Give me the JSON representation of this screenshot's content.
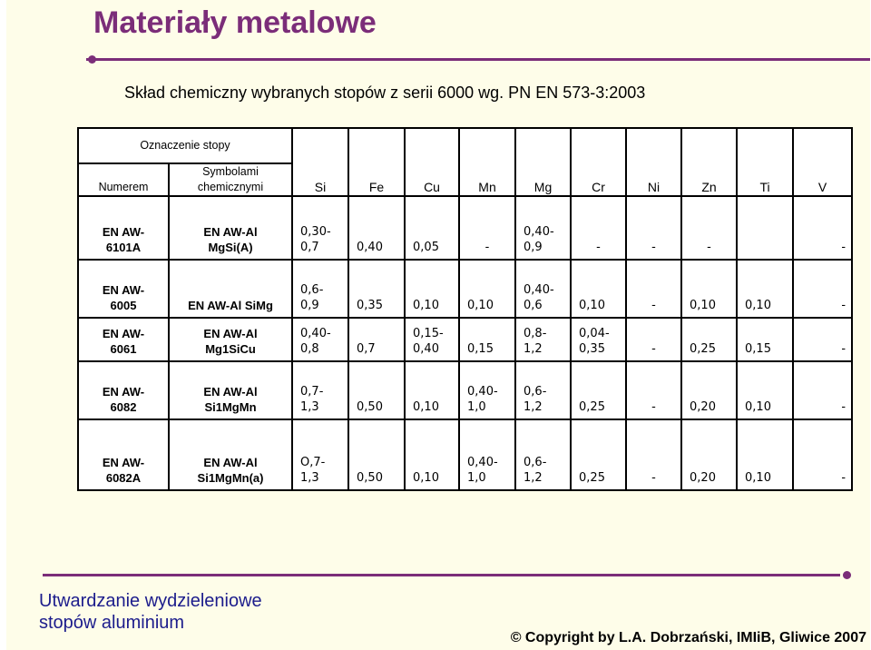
{
  "slide": {
    "title": "Materiały metalowe",
    "subtitle": "Skład chemiczny wybranych stopów z serii 6000 wg. PN EN 573-3:2003"
  },
  "table": {
    "group_header": "Oznaczenie stopy",
    "col_numerem": "Numerem",
    "col_symbolami_1": "Symbolami",
    "col_symbolami_2": "chemicznymi",
    "elements": [
      "Si",
      "Fe",
      "Cu",
      "Mn",
      "Mg",
      "Cr",
      "Ni",
      "Zn",
      "Ti",
      "V"
    ],
    "rows": [
      {
        "numer": [
          "EN AW-",
          "6101A"
        ],
        "symbol": [
          "EN AW-Al",
          "MgSi(A)"
        ],
        "values": [
          [
            "0,30-",
            "0,7"
          ],
          [
            "",
            "0,40"
          ],
          [
            "",
            "0,05"
          ],
          [
            "",
            "-"
          ],
          [
            "0,40-",
            "0,9"
          ],
          [
            "",
            "-"
          ],
          [
            "",
            "-"
          ],
          [
            "",
            "-"
          ],
          [
            "",
            ""
          ],
          [
            "",
            "-"
          ]
        ]
      },
      {
        "numer": [
          "EN AW-",
          "6005"
        ],
        "symbol": [
          "",
          "EN AW-Al SiMg"
        ],
        "values": [
          [
            "0,6-",
            "0,9"
          ],
          [
            "",
            "0,35"
          ],
          [
            "",
            "0,10"
          ],
          [
            "",
            "0,10"
          ],
          [
            "0,40-",
            "0,6"
          ],
          [
            "",
            "0,10"
          ],
          [
            "",
            "-"
          ],
          [
            "",
            "0,10"
          ],
          [
            "",
            "0,10"
          ],
          [
            "",
            "-"
          ]
        ]
      },
      {
        "numer": [
          "EN AW-",
          "6061"
        ],
        "symbol": [
          "EN AW-Al",
          "Mg1SiCu"
        ],
        "values": [
          [
            "0,40-",
            "0,8"
          ],
          [
            "",
            "0,7"
          ],
          [
            "0,15-",
            "0,40"
          ],
          [
            "",
            "0,15"
          ],
          [
            "0,8-",
            "1,2"
          ],
          [
            "0,04-",
            "0,35"
          ],
          [
            "",
            "-"
          ],
          [
            "",
            "0,25"
          ],
          [
            "",
            "0,15"
          ],
          [
            "",
            "-"
          ]
        ]
      },
      {
        "numer": [
          "EN AW-",
          "6082"
        ],
        "symbol": [
          "EN AW-Al",
          "Si1MgMn"
        ],
        "values": [
          [
            "0,7-",
            "1,3"
          ],
          [
            "",
            "0,50"
          ],
          [
            "",
            "0,10"
          ],
          [
            "0,40-",
            "1,0"
          ],
          [
            "0,6-",
            "1,2"
          ],
          [
            "",
            "0,25"
          ],
          [
            "",
            "-"
          ],
          [
            "",
            "0,20"
          ],
          [
            "",
            "0,10"
          ],
          [
            "",
            "-"
          ]
        ]
      },
      {
        "numer": [
          "EN AW-",
          "6082A"
        ],
        "symbol": [
          "EN AW-Al",
          "Si1MgMn(a)"
        ],
        "values": [
          [
            "O,7-",
            "1,3"
          ],
          [
            "",
            "0,50"
          ],
          [
            "",
            "0,10"
          ],
          [
            "0,40-",
            "1,0"
          ],
          [
            "0,6-",
            "1,2"
          ],
          [
            "",
            "0,25"
          ],
          [
            "",
            "-"
          ],
          [
            "",
            "0,20"
          ],
          [
            "",
            "0,10"
          ],
          [
            "",
            "-"
          ]
        ]
      }
    ]
  },
  "footer": {
    "left_line1": "Utwardzanie wydzieleniowe",
    "left_line2": "stopów aluminium",
    "copyright": "© Copyright by L.A. Dobrzański, IMIiB, Gliwice  2007"
  },
  "colors": {
    "title": "#7b2d79",
    "background": "#fefde9",
    "footer_text": "#1c1c8c"
  }
}
